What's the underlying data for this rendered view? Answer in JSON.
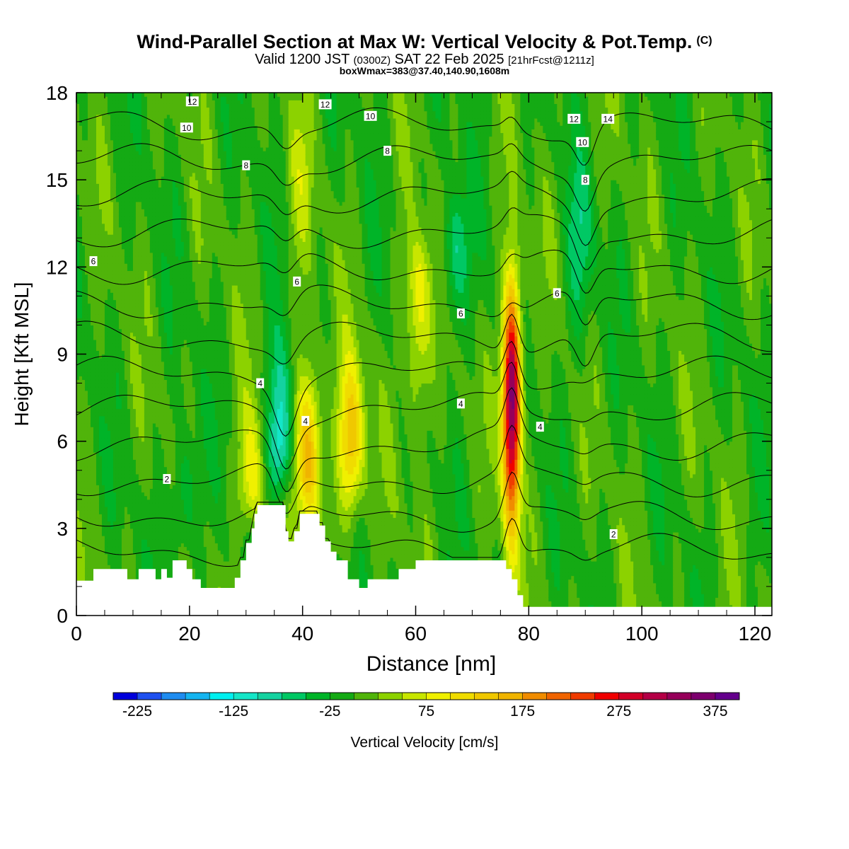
{
  "title": {
    "main": "Wind-Parallel Section at Max W: Vertical Velocity & Pot.Temp.",
    "copyright": "(C)",
    "valid_prefix": "Valid 1200 JST",
    "valid_utc": "(0300Z)",
    "valid_date": "SAT 22 Feb 2025",
    "forecast": "[21hrFcst@1211z]",
    "box": "boxWmax=383@37.40,140.90,1608m"
  },
  "chart_data": {
    "type": "heatmap",
    "xlabel": "Distance [nm]",
    "ylabel": "Height [Kft MSL]",
    "xlim": [
      0,
      123
    ],
    "ylim": [
      0,
      18
    ],
    "x_ticks": [
      0,
      20,
      40,
      60,
      80,
      100,
      120
    ],
    "y_ticks": [
      0,
      3,
      6,
      9,
      12,
      15,
      18
    ],
    "colorbar": {
      "title": "Vertical Velocity [cm/s]",
      "min": -250,
      "max": 400,
      "step": 25,
      "tick_labels": [
        "-225",
        "-125",
        "-25",
        "75",
        "175",
        "275",
        "375"
      ],
      "colors": [
        "#0000dc",
        "#1e50f0",
        "#1e8cf0",
        "#14b4f0",
        "#00f0f0",
        "#14e6c8",
        "#14d2a0",
        "#00c864",
        "#00b428",
        "#14aa14",
        "#50b40a",
        "#8cd200",
        "#c8e600",
        "#f0f000",
        "#f0dc00",
        "#f0c800",
        "#f0b400",
        "#f08c00",
        "#f06400",
        "#f03c00",
        "#f00000",
        "#d20028",
        "#b40046",
        "#96005a",
        "#7d006e",
        "#64008c"
      ]
    },
    "background_w": 0,
    "updrafts": [
      {
        "x": 77,
        "y_top": 12.5,
        "y_base": 2.0,
        "peak_w": 383,
        "peak_height": 7.5
      },
      {
        "x": 41,
        "y_top": 9.5,
        "y_base": 2.5,
        "peak_w": 175,
        "peak_height": 5.5
      },
      {
        "x": 48.5,
        "y_top": 9.5,
        "y_base": 2.5,
        "peak_w": 150,
        "peak_height": 6
      },
      {
        "x": 60.5,
        "y_top": 13.5,
        "y_base": 5,
        "peak_w": 100,
        "peak_height": 11
      },
      {
        "x": 31,
        "y_top": 8,
        "y_base": 2.5,
        "peak_w": 100,
        "peak_height": 4.5
      },
      {
        "x": 39.5,
        "y_top": 18,
        "y_base": 10,
        "peak_w": 40,
        "peak_height": 15
      }
    ],
    "downdrafts": [
      {
        "x": 36,
        "y_top": 10,
        "y_base": 3.5,
        "peak_w": -140,
        "peak_height": 6
      },
      {
        "x": 67,
        "y_top": 15,
        "y_base": 9,
        "peak_w": -80,
        "peak_height": 12.5
      },
      {
        "x": 89,
        "y_top": 16,
        "y_base": 8,
        "peak_w": -60,
        "peak_height": 13
      },
      {
        "x": 19,
        "y_top": 7,
        "y_base": 1,
        "peak_w": -60,
        "peak_height": 4
      }
    ],
    "theta_contours": {
      "levels": [
        2,
        3,
        4,
        5,
        6,
        7,
        8,
        9,
        10,
        11,
        12,
        13,
        14
      ],
      "labels": [
        {
          "text": "2",
          "x": 16,
          "y": 4.7
        },
        {
          "text": "2",
          "x": 95,
          "y": 2.8
        },
        {
          "text": "4",
          "x": 32.5,
          "y": 8.0
        },
        {
          "text": "4",
          "x": 40.5,
          "y": 6.7
        },
        {
          "text": "4",
          "x": 68,
          "y": 7.3
        },
        {
          "text": "4",
          "x": 82,
          "y": 6.5
        },
        {
          "text": "6",
          "x": 3,
          "y": 12.2
        },
        {
          "text": "6",
          "x": 39,
          "y": 11.5
        },
        {
          "text": "6",
          "x": 68,
          "y": 10.4
        },
        {
          "text": "6",
          "x": 85,
          "y": 11.1
        },
        {
          "text": "8",
          "x": 30,
          "y": 15.5
        },
        {
          "text": "8",
          "x": 55,
          "y": 16.0
        },
        {
          "text": "8",
          "x": 90,
          "y": 15.0
        },
        {
          "text": "10",
          "x": 19.5,
          "y": 16.8
        },
        {
          "text": "10",
          "x": 52,
          "y": 17.2
        },
        {
          "text": "10",
          "x": 89.5,
          "y": 16.3
        },
        {
          "text": "12",
          "x": 20.5,
          "y": 17.7
        },
        {
          "text": "12",
          "x": 44,
          "y": 17.6
        },
        {
          "text": "12",
          "x": 88,
          "y": 17.1
        },
        {
          "text": "14",
          "x": 94,
          "y": 17.1
        }
      ]
    },
    "terrain": [
      [
        0,
        1.2
      ],
      [
        3,
        1.2
      ],
      [
        3,
        1.6
      ],
      [
        9,
        1.6
      ],
      [
        9,
        1.25
      ],
      [
        11,
        1.25
      ],
      [
        11,
        1.6
      ],
      [
        14,
        1.6
      ],
      [
        14,
        1.25
      ],
      [
        15,
        1.25
      ],
      [
        15,
        1.6
      ],
      [
        16,
        1.6
      ],
      [
        16,
        1.3
      ],
      [
        17,
        1.3
      ],
      [
        17,
        1.9
      ],
      [
        19.5,
        1.9
      ],
      [
        19.5,
        1.6
      ],
      [
        20.5,
        1.6
      ],
      [
        20.5,
        1.25
      ],
      [
        22,
        1.25
      ],
      [
        22,
        0.95
      ],
      [
        28,
        0.95
      ],
      [
        28,
        1.3
      ],
      [
        29,
        1.3
      ],
      [
        29,
        1.9
      ],
      [
        30,
        1.9
      ],
      [
        30,
        2.5
      ],
      [
        31,
        2.5
      ],
      [
        31,
        3.0
      ],
      [
        31.5,
        3.0
      ],
      [
        31.5,
        3.5
      ],
      [
        32,
        3.5
      ],
      [
        32,
        3.8
      ],
      [
        37,
        3.8
      ],
      [
        37,
        2.9
      ],
      [
        37.5,
        2.9
      ],
      [
        37.5,
        2.55
      ],
      [
        38.5,
        2.55
      ],
      [
        38.5,
        2.9
      ],
      [
        39.5,
        2.9
      ],
      [
        39.5,
        3.5
      ],
      [
        43,
        3.5
      ],
      [
        43,
        3.1
      ],
      [
        44,
        3.1
      ],
      [
        44,
        2.55
      ],
      [
        45,
        2.55
      ],
      [
        45,
        2.2
      ],
      [
        46,
        2.2
      ],
      [
        46,
        1.9
      ],
      [
        48,
        1.9
      ],
      [
        48,
        1.25
      ],
      [
        50,
        1.25
      ],
      [
        50,
        0.95
      ],
      [
        51.5,
        0.95
      ],
      [
        51.5,
        1.25
      ],
      [
        57,
        1.25
      ],
      [
        57,
        1.6
      ],
      [
        60,
        1.6
      ],
      [
        60,
        1.9
      ],
      [
        76,
        1.9
      ],
      [
        76,
        1.6
      ],
      [
        77,
        1.6
      ],
      [
        77,
        1.25
      ],
      [
        78,
        1.25
      ],
      [
        78,
        0.7
      ],
      [
        79,
        0.7
      ],
      [
        79,
        0.3
      ],
      [
        123,
        0.3
      ]
    ]
  }
}
